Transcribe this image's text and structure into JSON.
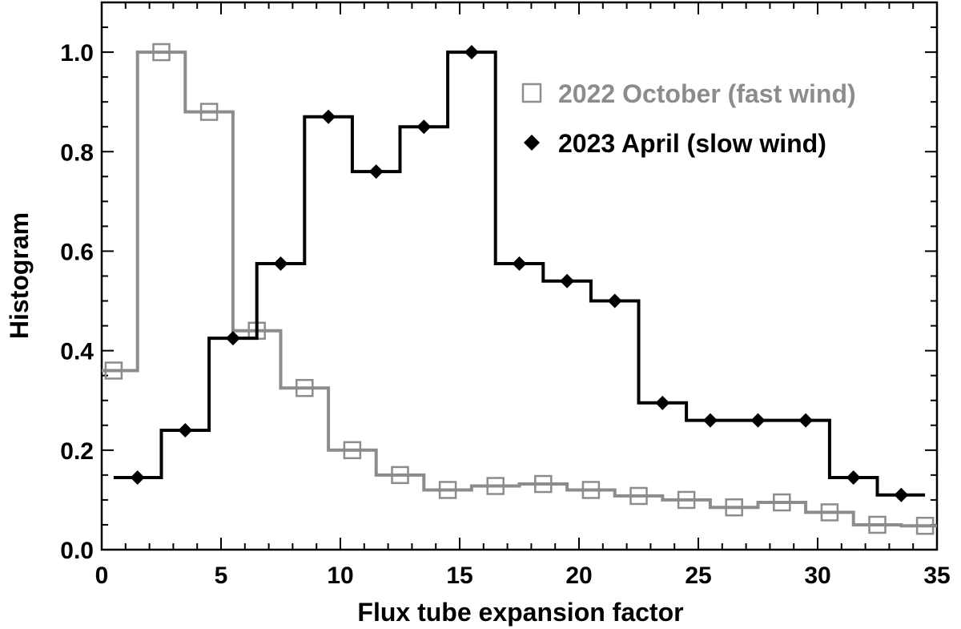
{
  "chart_data": {
    "type": "line",
    "xlabel": "Flux tube expansion factor",
    "ylabel": "Histogram",
    "xlim": [
      0,
      35
    ],
    "ylim": [
      0,
      1.1
    ],
    "xticks": [
      0,
      5,
      10,
      15,
      20,
      25,
      30,
      35
    ],
    "xtick_labels": [
      "0",
      "5",
      "10",
      "15",
      "20",
      "25",
      "30",
      "35"
    ],
    "yticks": [
      0.0,
      0.2,
      0.4,
      0.6,
      0.8,
      1.0
    ],
    "ytick_labels": [
      "0.0",
      "0.2",
      "0.4",
      "0.6",
      "0.8",
      "1.0"
    ],
    "grid": false,
    "legend_position": "top-right",
    "series": [
      {
        "name": "2022 October (fast wind)",
        "color": "#8c8c8c",
        "marker": "open-square",
        "x": [
          0.5,
          2.5,
          4.5,
          6.5,
          8.5,
          10.5,
          12.5,
          14.5,
          16.5,
          18.5,
          20.5,
          22.5,
          24.5,
          26.5,
          28.5,
          30.5,
          32.5,
          34.5
        ],
        "values": [
          0.36,
          1.0,
          0.88,
          0.44,
          0.325,
          0.2,
          0.15,
          0.12,
          0.128,
          0.132,
          0.12,
          0.108,
          0.1,
          0.085,
          0.095,
          0.075,
          0.05,
          0.048
        ]
      },
      {
        "name": "2023 April (slow wind)",
        "color": "#000000",
        "marker": "filled-diamond",
        "x": [
          1.5,
          3.5,
          5.5,
          7.5,
          9.5,
          11.5,
          13.5,
          15.5,
          17.5,
          19.5,
          21.5,
          23.5,
          25.5,
          27.5,
          29.5,
          31.5,
          33.5
        ],
        "values": [
          0.145,
          0.24,
          0.425,
          0.575,
          0.87,
          0.76,
          0.85,
          1.0,
          0.575,
          0.54,
          0.5,
          0.295,
          0.26,
          0.26,
          0.26,
          0.145,
          0.11
        ]
      }
    ]
  }
}
